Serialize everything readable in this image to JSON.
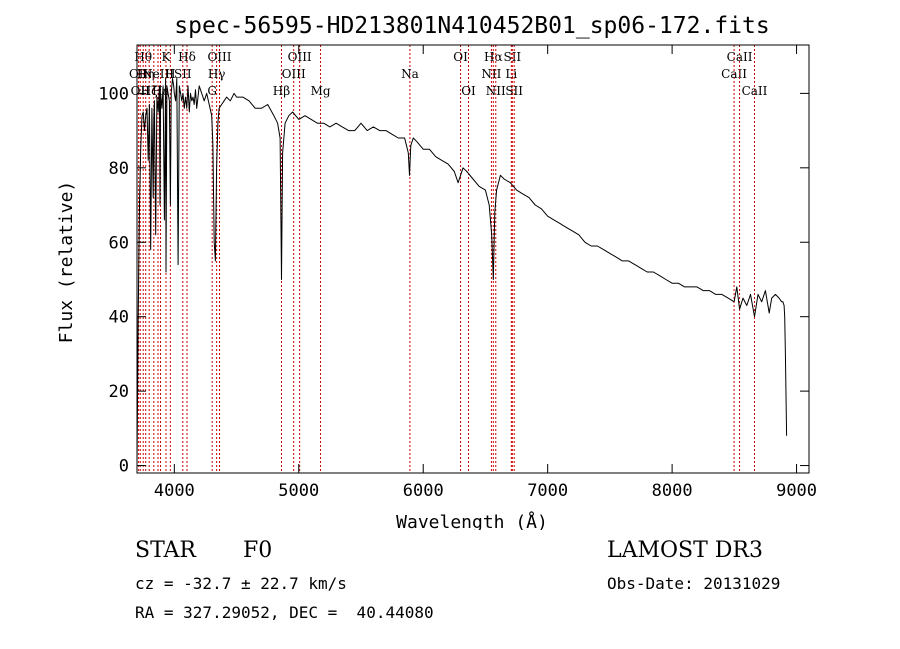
{
  "chart_data": {
    "type": "line",
    "title": "spec-56595-HD213801N410452B01_sp06-172.fits",
    "xlabel": "Wavelength (Å)",
    "ylabel": "Flux (relative)",
    "xlim": [
      3700,
      9100
    ],
    "ylim": [
      -2,
      113
    ],
    "xticks": [
      4000,
      5000,
      6000,
      7000,
      8000,
      9000
    ],
    "yticks": [
      0,
      20,
      40,
      60,
      80,
      100
    ],
    "grid": false,
    "series": [
      {
        "name": "spectrum",
        "x": [
          3700,
          3710,
          3720,
          3730,
          3740,
          3750,
          3760,
          3770,
          3780,
          3790,
          3800,
          3810,
          3820,
          3830,
          3835,
          3840,
          3850,
          3860,
          3870,
          3880,
          3885,
          3890,
          3900,
          3910,
          3920,
          3930,
          3933,
          3940,
          3950,
          3960,
          3968,
          3975,
          3985,
          3995,
          4000,
          4010,
          4020,
          4030,
          4040,
          4050,
          4060,
          4070,
          4080,
          4090,
          4100,
          4110,
          4120,
          4130,
          4140,
          4150,
          4160,
          4170,
          4180,
          4190,
          4200,
          4220,
          4240,
          4260,
          4280,
          4300,
          4310,
          4320,
          4330,
          4340,
          4350,
          4360,
          4380,
          4400,
          4420,
          4450,
          4480,
          4500,
          4550,
          4600,
          4650,
          4700,
          4750,
          4800,
          4830,
          4850,
          4861,
          4870,
          4890,
          4920,
          4950,
          5000,
          5050,
          5100,
          5150,
          5200,
          5250,
          5300,
          5350,
          5400,
          5450,
          5500,
          5550,
          5600,
          5650,
          5700,
          5750,
          5800,
          5850,
          5880,
          5890,
          5900,
          5920,
          5950,
          6000,
          6050,
          6100,
          6150,
          6200,
          6250,
          6280,
          6300,
          6320,
          6350,
          6400,
          6450,
          6500,
          6530,
          6550,
          6563,
          6575,
          6590,
          6620,
          6650,
          6700,
          6750,
          6800,
          6850,
          6900,
          6950,
          7000,
          7050,
          7100,
          7150,
          7200,
          7250,
          7300,
          7350,
          7400,
          7450,
          7500,
          7550,
          7600,
          7650,
          7700,
          7750,
          7800,
          7850,
          7900,
          7950,
          8000,
          8050,
          8100,
          8150,
          8200,
          8250,
          8300,
          8350,
          8400,
          8450,
          8498,
          8520,
          8542,
          8570,
          8600,
          8630,
          8662,
          8690,
          8720,
          8750,
          8780,
          8800,
          8830,
          8860,
          8880,
          8890,
          8900,
          8905,
          8910,
          8920
        ],
        "y": [
          0,
          40,
          70,
          85,
          94,
          95,
          90,
          94,
          96,
          82,
          97,
          58,
          96,
          72,
          93,
          98,
          62,
          99,
          95,
          102,
          70,
          100,
          96,
          102,
          66,
          104,
          52,
          102,
          100,
          98,
          70,
          100,
          104,
          102,
          100,
          98,
          104,
          54,
          102,
          100,
          98,
          100,
          96,
          99,
          96,
          102,
          95,
          100,
          98,
          99,
          97,
          101,
          96,
          99,
          102,
          100,
          98,
          100,
          97,
          94,
          86,
          60,
          55,
          80,
          92,
          96,
          97,
          98,
          99,
          98,
          100,
          99,
          99,
          98,
          96,
          96,
          97,
          94,
          92,
          88,
          50,
          84,
          92,
          94,
          95,
          93,
          94,
          93,
          92,
          92,
          91,
          92,
          91,
          90,
          90,
          92,
          90,
          91,
          90,
          90,
          89,
          88,
          88,
          84,
          78,
          86,
          88,
          87,
          85,
          85,
          83,
          82,
          81,
          79,
          76,
          78,
          80,
          79,
          77,
          75,
          74,
          70,
          62,
          50,
          68,
          74,
          78,
          77,
          76,
          74,
          73,
          72,
          70,
          69,
          67,
          66,
          65,
          64,
          63,
          62,
          60,
          59,
          59,
          58,
          57,
          56,
          55,
          55,
          54,
          53,
          52,
          52,
          51,
          50,
          49,
          49,
          48,
          48,
          48,
          47,
          47,
          46,
          46,
          45,
          44,
          48,
          42,
          45,
          43,
          46,
          40,
          46,
          44,
          47,
          41,
          45,
          46,
          45,
          44,
          44,
          43,
          40,
          30,
          8
        ]
      }
    ],
    "lines": [
      {
        "x": 3713,
        "label": "OII",
        "row": 2
      },
      {
        "x": 3726,
        "label": "OII",
        "row": 3
      },
      {
        "x": 3750,
        "label": "Hθ",
        "row": 1
      },
      {
        "x": 3770,
        "label": "Hη",
        "row": 2
      },
      {
        "x": 3798,
        "label": "Hζ",
        "row": 3
      },
      {
        "x": 3835,
        "label": "",
        "row": 1
      },
      {
        "x": 3869,
        "label": "NeIII",
        "row": 2
      },
      {
        "x": 3889,
        "label": "Hε",
        "row": 3
      },
      {
        "x": 3933,
        "label": "K",
        "row": 1
      },
      {
        "x": 3968,
        "label": "H",
        "row": 2
      },
      {
        "x": 4068,
        "label": "SII",
        "row": 2
      },
      {
        "x": 4102,
        "label": "Hδ",
        "row": 1
      },
      {
        "x": 4304,
        "label": "G",
        "row": 3
      },
      {
        "x": 4340,
        "label": "Hγ",
        "row": 2
      },
      {
        "x": 4363,
        "label": "OIII",
        "row": 1
      },
      {
        "x": 4861,
        "label": "Hβ",
        "row": 3
      },
      {
        "x": 4959,
        "label": "OIII",
        "row": 2
      },
      {
        "x": 5007,
        "label": "OIII",
        "row": 1
      },
      {
        "x": 5175,
        "label": "Mg",
        "row": 3
      },
      {
        "x": 5893,
        "label": "Na",
        "row": 2
      },
      {
        "x": 6300,
        "label": "OI",
        "row": 1
      },
      {
        "x": 6364,
        "label": "OI",
        "row": 3
      },
      {
        "x": 6548,
        "label": "NII",
        "row": 2
      },
      {
        "x": 6563,
        "label": "Hα",
        "row": 1
      },
      {
        "x": 6583,
        "label": "NII",
        "row": 3
      },
      {
        "x": 6708,
        "label": "Li",
        "row": 2
      },
      {
        "x": 6716,
        "label": "SII",
        "row": 1
      },
      {
        "x": 6731,
        "label": "SII",
        "row": 3
      },
      {
        "x": 8498,
        "label": "CaII",
        "row": 2
      },
      {
        "x": 8542,
        "label": "CaII",
        "row": 1
      },
      {
        "x": 8662,
        "label": "CaII",
        "row": 3
      }
    ]
  },
  "info": {
    "object_class": "STAR",
    "subclass": "F0",
    "survey": "LAMOST DR3",
    "redshift": "cz = -32.7 ± 22.7 km/s",
    "obs_date": "Obs-Date: 20131029",
    "coords": "RA = 327.29052, DEC =  40.44080"
  }
}
